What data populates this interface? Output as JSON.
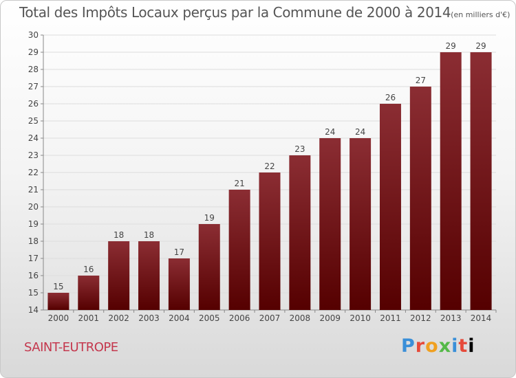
{
  "title": "Total des Impôts Locaux perçus par la Commune de 2000 à 2014",
  "unit_label": "(en milliers d'€)",
  "commune": "SAINT-EUTROPE",
  "logo_letters": [
    "P",
    "r",
    "o",
    "x",
    "i",
    "t",
    "i"
  ],
  "colors": {
    "bar_top": "#8b2d33",
    "bar_bottom": "#550000",
    "grid": "#dddddd",
    "axis_text": "#444444",
    "commune": "#c4374d"
  },
  "chart_data": {
    "type": "bar",
    "categories": [
      "2000",
      "2001",
      "2002",
      "2003",
      "2004",
      "2005",
      "2006",
      "2007",
      "2008",
      "2009",
      "2010",
      "2011",
      "2012",
      "2013",
      "2014"
    ],
    "values": [
      15,
      16,
      18,
      18,
      17,
      19,
      21,
      22,
      23,
      24,
      24,
      26,
      27,
      29,
      29
    ],
    "ylim": [
      14,
      30
    ],
    "yticks": [
      14,
      15,
      16,
      17,
      18,
      19,
      20,
      21,
      22,
      23,
      24,
      25,
      26,
      27,
      28,
      29,
      30
    ],
    "grid": true,
    "legend": "none"
  }
}
